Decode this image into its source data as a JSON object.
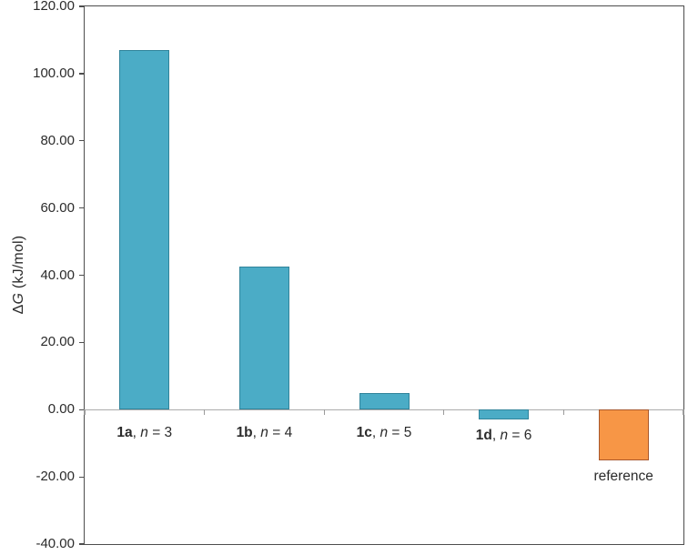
{
  "figure": {
    "background": "#ffffff"
  },
  "chart_data": {
    "type": "bar",
    "title": "",
    "xlabel": "",
    "ylabel": "ΔG (kJ/mol)",
    "ylabel_parts": {
      "prefix": "Δ",
      "italic": "G",
      "suffix": " (kJ/mol)"
    },
    "ylim": [
      -40,
      120
    ],
    "ytick_step": 20,
    "yticks": [
      {
        "value": 120,
        "label": "120.00"
      },
      {
        "value": 100,
        "label": "100.00"
      },
      {
        "value": 80,
        "label": "80.00"
      },
      {
        "value": 60,
        "label": "60.00"
      },
      {
        "value": 40,
        "label": "40.00"
      },
      {
        "value": 20,
        "label": "20.00"
      },
      {
        "value": 0,
        "label": "0.00"
      },
      {
        "value": -20,
        "label": "-20.00"
      },
      {
        "value": -40,
        "label": "-40.00"
      }
    ],
    "grid": "zero-baseline-only",
    "legend": "none",
    "categories": [
      {
        "id": "1a",
        "label": "1a, n = 3",
        "label_bold": "1a",
        "label_mid": ", ",
        "label_italic": "n",
        "label_end": " = 3",
        "value": 107.0,
        "fill": "#4BACC6",
        "stroke": "#31849B"
      },
      {
        "id": "1b",
        "label": "1b, n = 4",
        "label_bold": "1b",
        "label_mid": ", ",
        "label_italic": "n",
        "label_end": " = 4",
        "value": 42.5,
        "fill": "#4BACC6",
        "stroke": "#31849B"
      },
      {
        "id": "1c",
        "label": "1c, n = 5",
        "label_bold": "1c",
        "label_mid": ", ",
        "label_italic": "n",
        "label_end": " = 5",
        "value": 5.0,
        "fill": "#4BACC6",
        "stroke": "#31849B"
      },
      {
        "id": "1d",
        "label": "1d, n = 6",
        "label_bold": "1d",
        "label_mid": ", ",
        "label_italic": "n",
        "label_end": " = 6",
        "value": -3.0,
        "fill": "#4BACC6",
        "stroke": "#31849B"
      },
      {
        "id": "reference",
        "label": "reference",
        "label_plain": "reference",
        "value": -15.0,
        "fill": "#F79646",
        "stroke": "#A8582D"
      }
    ],
    "colors": {
      "axis": "#4d4d4d",
      "zero_line": "#ababab",
      "x_tick": "#9a9a9a",
      "text": "#2b2b2b"
    }
  }
}
